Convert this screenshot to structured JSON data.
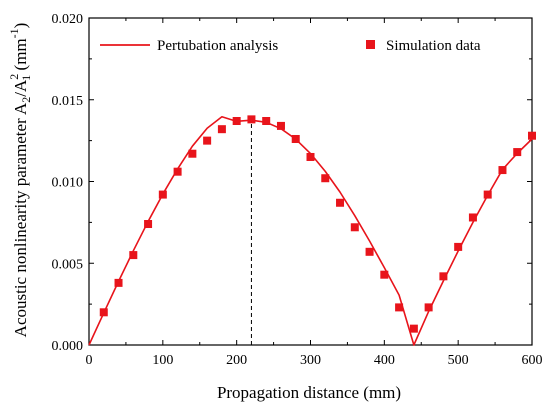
{
  "chart_data": {
    "type": "line",
    "xlabel": "Propagation distance (mm)",
    "ylabel": {
      "base": "Acoustic nonlinearity parameter A",
      "sub1": "2",
      "mid": "/A",
      "sup2": "2",
      "sub2": "1",
      "unit_open": " (mm",
      "unit_sup": "-1",
      "unit_close": ")"
    },
    "xlim": [
      0,
      600
    ],
    "ylim": [
      0,
      0.02
    ],
    "xticks": [
      0,
      100,
      200,
      300,
      400,
      500,
      600
    ],
    "yticks": [
      0.0,
      0.005,
      0.01,
      0.015,
      0.02
    ],
    "xtick_labels": [
      "0",
      "100",
      "200",
      "300",
      "400",
      "500",
      "600"
    ],
    "ytick_labels": [
      "0.000",
      "0.005",
      "0.010",
      "0.015",
      "0.020"
    ],
    "grid": false,
    "legend_position": "top",
    "series": [
      {
        "name": "Pertubation analysis",
        "kind": "line",
        "color": "#e8141b",
        "x": [
          0,
          20,
          40,
          60,
          80,
          100,
          120,
          140,
          160,
          180,
          200,
          220,
          240,
          260,
          280,
          300,
          320,
          340,
          360,
          380,
          400,
          420,
          440,
          460,
          480,
          500,
          520,
          540,
          560,
          580,
          600
        ],
        "y": [
          0.0,
          0.00196,
          0.00389,
          0.00576,
          0.00755,
          0.00923,
          0.01077,
          0.01216,
          0.01326,
          0.01396,
          0.01368,
          0.01375,
          0.01362,
          0.01323,
          0.01259,
          0.01171,
          0.01062,
          0.00935,
          0.00791,
          0.00636,
          0.00473,
          0.00305,
          0.0,
          0.00205,
          0.00392,
          0.00575,
          0.0075,
          0.00916,
          0.01073,
          0.01172,
          0.0126
        ]
      },
      {
        "name": "Simulation data",
        "kind": "scatter",
        "color": "#e8141b",
        "marker": "square",
        "x": [
          20,
          40,
          60,
          80,
          100,
          120,
          140,
          160,
          180,
          200,
          220,
          240,
          260,
          280,
          300,
          320,
          340,
          360,
          380,
          400,
          420,
          440,
          460,
          480,
          500,
          520,
          540,
          560,
          580,
          600
        ],
        "y": [
          0.002,
          0.0038,
          0.0055,
          0.0074,
          0.0092,
          0.0106,
          0.0117,
          0.0125,
          0.0132,
          0.0137,
          0.0138,
          0.0137,
          0.0134,
          0.0126,
          0.0115,
          0.0102,
          0.0087,
          0.0072,
          0.0057,
          0.0043,
          0.0023,
          0.001,
          0.0023,
          0.0042,
          0.006,
          0.0078,
          0.0092,
          0.0107,
          0.0118,
          0.0128
        ]
      }
    ],
    "annotations": [
      {
        "type": "vline",
        "x": 220,
        "y_top": 0.0137,
        "style": "dashed",
        "color": "#000000"
      }
    ]
  }
}
